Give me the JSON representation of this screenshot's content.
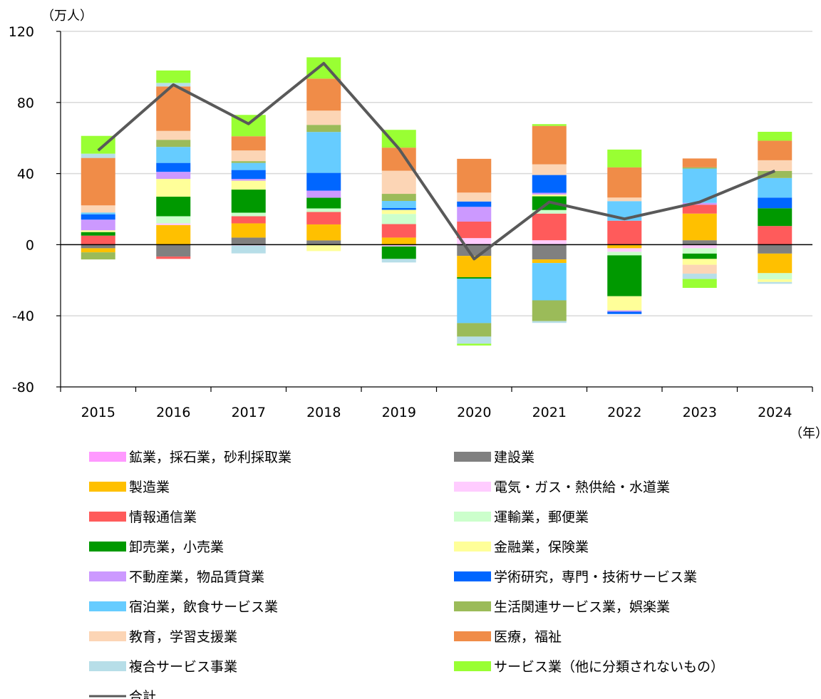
{
  "chart_data": {
    "type": "bar",
    "stacked": true,
    "title": "",
    "ylabel": "（万人）",
    "xlabel": "（年）",
    "ylim": [
      -80,
      120
    ],
    "yticks": [
      120,
      80,
      40,
      0,
      -40,
      -80
    ],
    "grid": true,
    "legend_position": "bottom",
    "categories": [
      "2015",
      "2016",
      "2017",
      "2018",
      "2019",
      "2020",
      "2021",
      "2022",
      "2023",
      "2024"
    ],
    "series": [
      {
        "name": "鉱業，採石業，砂利採取業",
        "color": "#FF99FF",
        "values": [
          0,
          0,
          0,
          0,
          0,
          0,
          0,
          0,
          0,
          0
        ]
      },
      {
        "name": "建設業",
        "color": "#808080",
        "values": [
          -2,
          -6.7,
          4,
          2.4,
          0,
          -6.3,
          -8.3,
          0,
          2.5,
          -5
        ]
      },
      {
        "name": "製造業",
        "color": "#FFC000",
        "values": [
          -2.3,
          11,
          8,
          9,
          4,
          -12,
          -2,
          -2,
          15,
          -11
        ]
      },
      {
        "name": "電気・ガス・熱供給・水道業",
        "color": "#FFCCFF",
        "values": [
          0,
          1,
          -0.5,
          0,
          -1,
          3.7,
          2.5,
          -2,
          -2,
          0
        ]
      },
      {
        "name": "情報通信業",
        "color": "#FF5B5B",
        "values": [
          5.1,
          -1.3,
          4,
          7,
          7.6,
          9.3,
          15,
          13.5,
          5,
          10.5
        ]
      },
      {
        "name": "運輸業，郵便業",
        "color": "#CCFFCC",
        "values": [
          0,
          4,
          2,
          2,
          5.7,
          0,
          2,
          -2,
          -3,
          -3.5
        ]
      },
      {
        "name": "卸売業，小売業",
        "color": "#009900",
        "values": [
          2,
          11,
          13,
          6,
          -7,
          -0.8,
          7.7,
          -23,
          -3,
          10
        ]
      },
      {
        "name": "金融業，保険業",
        "color": "#FFFF99",
        "values": [
          1,
          10,
          5,
          -3.6,
          2.3,
          0,
          1,
          -8,
          -3.3,
          -1.5
        ]
      },
      {
        "name": "不動産業，物品賃貸業",
        "color": "#CC99FF",
        "values": [
          6,
          4,
          1,
          4,
          0,
          8.3,
          1,
          -0.7,
          1,
          0
        ]
      },
      {
        "name": "学術研究，専門・技術サービス業",
        "color": "#0066FF",
        "values": [
          3,
          5,
          5,
          10,
          1,
          3,
          10,
          -1.3,
          0,
          6
        ]
      },
      {
        "name": "宿泊業，飲食サービス業",
        "color": "#66CCFF",
        "values": [
          1,
          9,
          4,
          23,
          4,
          -25,
          -21,
          11,
          19.3,
          11
        ]
      },
      {
        "name": "生活関連サービス業，娯楽業",
        "color": "#9BBB59",
        "values": [
          -4,
          4,
          1,
          4,
          4,
          -7.6,
          -11.7,
          0,
          0.7,
          4
        ]
      },
      {
        "name": "教育，学習支援業",
        "color": "#FCD5B5",
        "values": [
          4,
          5,
          6,
          8,
          13,
          5,
          6,
          2,
          -5,
          6
        ]
      },
      {
        "name": "医療，福祉",
        "color": "#F08C48",
        "values": [
          26.7,
          25,
          8,
          18,
          13,
          19,
          21.6,
          17,
          5,
          11
        ]
      },
      {
        "name": "複合サービス事業",
        "color": "#B7DEE8",
        "values": [
          2.4,
          2,
          -4.4,
          0,
          -2,
          -4,
          -1,
          0,
          -3,
          -1
        ]
      },
      {
        "name": "サービス業（他に分類されないもの）",
        "color": "#99FF33",
        "values": [
          10,
          7,
          12,
          12,
          10,
          -1,
          1,
          10,
          -5,
          5
        ]
      }
    ],
    "total": {
      "name": "合計",
      "color": "#595959",
      "values": [
        53,
        90,
        68,
        102,
        54,
        -8,
        24,
        14.5,
        24,
        41.5
      ]
    }
  }
}
